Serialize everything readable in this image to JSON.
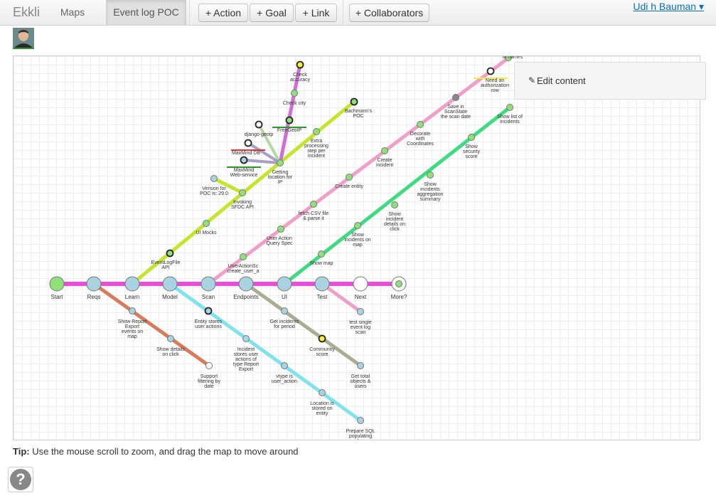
{
  "brand": "Ekkli",
  "nav": {
    "maps": "Maps",
    "active": "Event log POC"
  },
  "toolbar": {
    "action": "+ Action",
    "goal": "+ Goal",
    "link": "+ Link",
    "collaborators": "+ Collaborators"
  },
  "user": {
    "name": "Udi h Bauman ▾"
  },
  "edit_panel": {
    "label": "Edit content"
  },
  "tip": {
    "label": "Tip:",
    "text": "Use the mouse scroll to zoom, and drag the map to move around"
  },
  "help": {
    "glyph": "?"
  },
  "map": {
    "lines": [
      {
        "id": "main",
        "color": "#e84fd6"
      },
      {
        "id": "reqs",
        "color": "#d77b5b"
      },
      {
        "id": "learn",
        "color": "#c6e42a"
      },
      {
        "id": "model",
        "color": "#7fe3ee"
      },
      {
        "id": "scan",
        "color": "#f0a0c8"
      },
      {
        "id": "endpoints",
        "color": "#a8ae92"
      },
      {
        "id": "ui",
        "color": "#3ddc80"
      },
      {
        "id": "test",
        "color": "#f0a0c8"
      },
      {
        "id": "geo",
        "color": "#cf6fd8"
      },
      {
        "id": "geoip",
        "color": "#b3d9a0"
      },
      {
        "id": "maxmind",
        "color": "#a89ec8"
      }
    ],
    "stations": [
      {
        "label": "Start",
        "fill": "#8fe07a",
        "big": true
      },
      {
        "label": "Reqs",
        "fill": "#a9d3e0",
        "big": true
      },
      {
        "label": "Learn",
        "fill": "#a9d3e0",
        "big": true
      },
      {
        "label": "Model",
        "fill": "#a9d3e0",
        "big": true
      },
      {
        "label": "Scan",
        "fill": "#a9d3e0",
        "big": true
      },
      {
        "label": "Endpoints",
        "fill": "#a9d3e0",
        "big": true
      },
      {
        "label": "UI",
        "fill": "#a9d3e0",
        "big": true
      },
      {
        "label": "Test",
        "fill": "#a9d3e0",
        "big": true
      },
      {
        "label": "Next",
        "fill": "#ffffff",
        "big": true
      },
      {
        "label": "More?",
        "fill": "#ffffff",
        "big": true
      },
      {
        "label": "Show Report|Export|events on|map",
        "fill": "#a9d3e0"
      },
      {
        "label": "Show details|on click",
        "fill": "#a9d3e0"
      },
      {
        "label": "Support|filtering by|date",
        "fill": "#ffffff"
      },
      {
        "label": "Entity stores|user actions",
        "fill": "#a9d3e0",
        "ring": "#222"
      },
      {
        "label": "Incident|stores user|actions of|type Report|Export",
        "fill": "#a9d3e0"
      },
      {
        "label": "vtype is|user_action",
        "fill": "#a9d3e0"
      },
      {
        "label": "Location is|stored on|entity",
        "fill": "#a9d3e0"
      },
      {
        "label": "Prepare SQL|populating|data",
        "fill": "#a9d3e0"
      },
      {
        "label": "Get incidents|for period",
        "fill": "#a9d3e0"
      },
      {
        "label": "Community|score",
        "fill": "#f5ee3a",
        "ring": "#222"
      },
      {
        "label": "Get total|objects &|users",
        "fill": "#a9d3e0"
      },
      {
        "label": "test single|event log|scan",
        "fill": "#a9d3e0"
      },
      {
        "label": "EventLogFile|API",
        "fill": "#8fe07a",
        "ring": "#222"
      },
      {
        "label": "UI Mocks",
        "fill": "#8fe07a"
      },
      {
        "label": "Invoking|SFDC API",
        "fill": "#8fe07a"
      },
      {
        "label": "Version for|POC is: 29.0",
        "fill": "#a9d3e0"
      },
      {
        "label": "Getting|location for|IP",
        "fill": "#8fe07a"
      },
      {
        "label": "Extra|processing|step per|incident",
        "fill": "#8fe07a"
      },
      {
        "label": "Bachmann's|POC",
        "fill": "#8fe07a",
        "ring": "#222"
      },
      {
        "label": "MaxMind|Web-service",
        "fill": "#a9d3e0",
        "ring": "#222",
        "bar": "#2a9a2a"
      },
      {
        "label": "MaxMind DB",
        "fill": "#ffffff",
        "ring": "#222",
        "bar": "#d03a3a"
      },
      {
        "label": "django-geoip",
        "fill": "#ffffff",
        "ring": "#222"
      },
      {
        "label": "FreeGeoIP",
        "fill": "#8fe07a",
        "ring": "#222",
        "bar": "#2a9a2a"
      },
      {
        "label": "Check city",
        "fill": "#8fe07a"
      },
      {
        "label": "Check|accuracy",
        "fill": "#f5ee3a",
        "ring": "#222"
      },
      {
        "label": "UserActionSc|create_user_a",
        "fill": "#8fe07a"
      },
      {
        "label": "User Action|Query Spec",
        "fill": "#8fe07a"
      },
      {
        "label": "fetch CSV file|& parse it",
        "fill": "#8fe07a"
      },
      {
        "label": "Create entity",
        "fill": "#8fe07a"
      },
      {
        "label": "Create|incident",
        "fill": "#8fe07a"
      },
      {
        "label": "Decorate|with|Coordinates",
        "fill": "#8fe07a"
      },
      {
        "label": "Save in|ScanState|the scan date",
        "fill": "#888888"
      },
      {
        "label": "Need an|authorization|row",
        "fill": "#ffffff",
        "ring": "#222",
        "bar": "#f5ee3a"
      },
      {
        "label": "to names",
        "fill": "#8fe07a"
      },
      {
        "label": "Show map",
        "fill": "#8fe07a"
      },
      {
        "label": "Show|incidents on|map",
        "fill": "#8fe07a"
      },
      {
        "label": "Show|incident|details on|click",
        "fill": "#8fe07a"
      },
      {
        "label": "Show|incidents|aggregation|summary",
        "fill": "#8fe07a"
      },
      {
        "label": "Show|security|score",
        "fill": "#8fe07a"
      },
      {
        "label": "Show list of|incidents",
        "fill": "#8fe07a"
      },
      {
        "label": "",
        "fill": "#8fe07a"
      }
    ]
  }
}
